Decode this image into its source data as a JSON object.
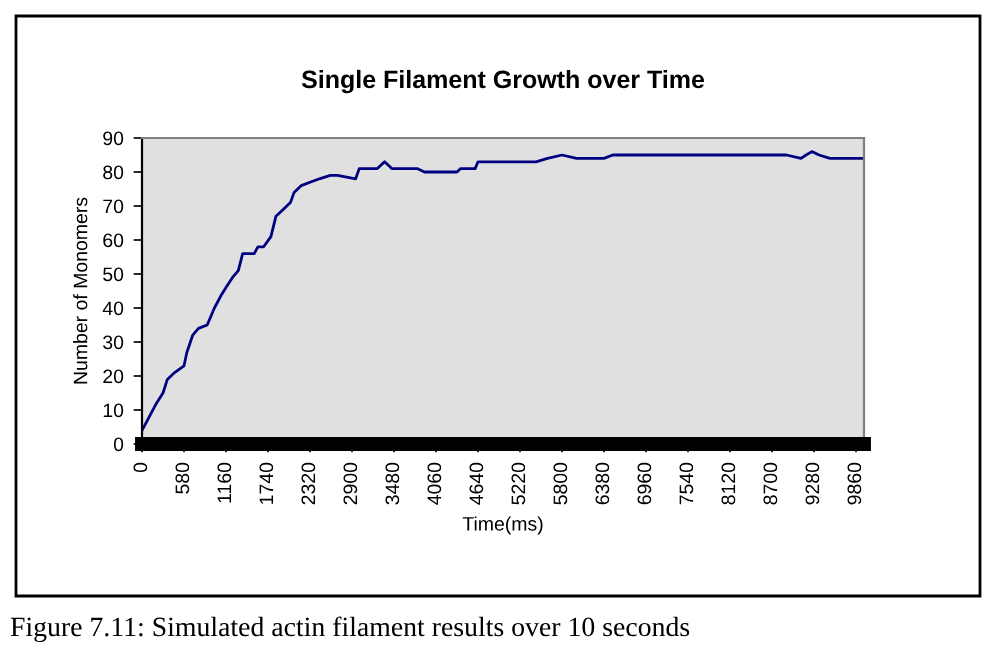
{
  "chart_data": {
    "type": "line",
    "title": "Single Filament Growth over Time",
    "xlabel": "Time(ms)",
    "ylabel": "Number of Monomers",
    "x": [
      0,
      100,
      200,
      290,
      350,
      450,
      580,
      620,
      700,
      780,
      900,
      1000,
      1100,
      1160,
      1250,
      1330,
      1390,
      1550,
      1600,
      1680,
      1780,
      1850,
      1950,
      2050,
      2100,
      2200,
      2320,
      2450,
      2600,
      2700,
      2950,
      3000,
      3250,
      3350,
      3450,
      3800,
      3900,
      4350,
      4400,
      4600,
      4640,
      5200,
      5440,
      5600,
      5800,
      6000,
      6380,
      6500,
      7700,
      8900,
      9100,
      9170,
      9250,
      9350,
      9500,
      9970
    ],
    "series": [
      {
        "color": "#000080",
        "values": [
          4,
          8,
          12,
          15,
          19,
          21,
          23,
          27,
          32,
          34,
          35,
          40,
          44,
          46,
          49,
          51,
          56,
          56,
          58,
          58,
          61,
          67,
          69,
          71,
          74,
          76,
          77,
          78,
          79,
          79,
          78,
          81,
          81,
          83,
          81,
          81,
          80,
          80,
          81,
          81,
          83,
          83,
          83,
          84,
          85,
          84,
          84,
          85,
          85,
          85,
          84,
          85,
          86,
          85,
          84,
          84
        ]
      }
    ],
    "xlim": [
      0,
      9970
    ],
    "xticks": [
      0,
      580,
      1160,
      1740,
      2320,
      2900,
      3480,
      4060,
      4640,
      5220,
      5800,
      6380,
      6960,
      7540,
      8120,
      8700,
      9280,
      9860
    ],
    "ylim": [
      0,
      90
    ],
    "yticks": [
      0,
      10,
      20,
      30,
      40,
      50,
      60,
      70,
      80,
      90
    ],
    "grid": false,
    "legend": false,
    "annotations": [
      "Figure 7.11: Simulated actin filament results over 10 seconds"
    ]
  }
}
